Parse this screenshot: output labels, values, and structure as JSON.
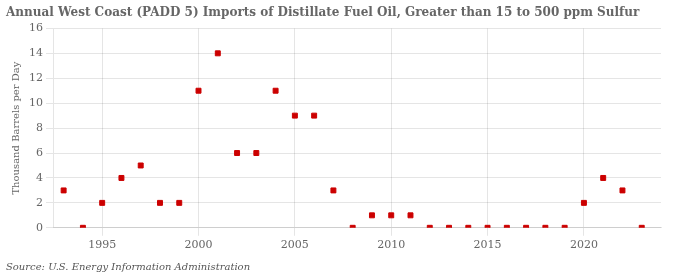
{
  "chart_data": {
    "type": "scatter",
    "title": "Annual West Coast (PADD 5) Imports of Distillate Fuel Oil, Greater than 15 to 500 ppm Sulfur",
    "ylabel": "Thousand Barrels per Day",
    "source": "Source: U.S. Energy Information Administration",
    "x": [
      1993,
      1994,
      1995,
      1996,
      1997,
      1998,
      1999,
      2000,
      2001,
      2002,
      2003,
      2004,
      2005,
      2006,
      2007,
      2008,
      2009,
      2010,
      2011,
      2012,
      2013,
      2014,
      2015,
      2016,
      2017,
      2018,
      2019,
      2020,
      2021,
      2022,
      2023
    ],
    "values": [
      3,
      0,
      2,
      4,
      5,
      2,
      2,
      11,
      14,
      6,
      6,
      11,
      9,
      9,
      3,
      0,
      1,
      1,
      1,
      0,
      0,
      0,
      0,
      0,
      0,
      0,
      0,
      2,
      4,
      3,
      0
    ],
    "color": "#cc0000",
    "marker": "square",
    "xlim": [
      1992.5,
      2024
    ],
    "xticks": [
      1995,
      2000,
      2005,
      2010,
      2015,
      2020
    ],
    "ylim": [
      0,
      16
    ],
    "yticks": [
      0,
      2,
      4,
      6,
      8,
      10,
      12,
      14,
      16
    ],
    "grid": true
  }
}
